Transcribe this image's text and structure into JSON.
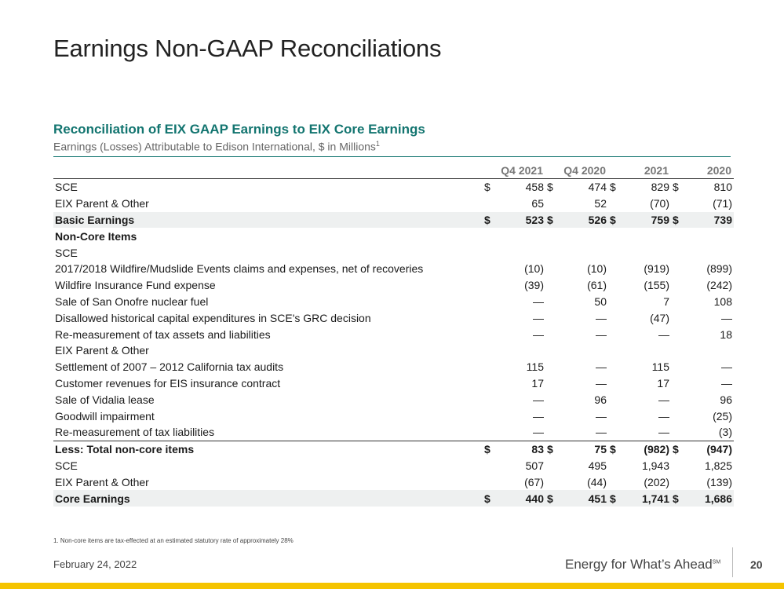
{
  "title": "Earnings Non-GAAP Reconciliations",
  "subtitle": "Reconciliation of EIX GAAP Earnings to EIX Core Earnings",
  "units_note": "Earnings (Losses) Attributable to Edison International, $ in Millions",
  "units_footnote_mark": "1",
  "columns": [
    "Q4 2021",
    "Q4 2020",
    "2021",
    "2020"
  ],
  "rows": [
    {
      "label": "SCE",
      "indent": false,
      "dollar": true,
      "values": [
        "458",
        "474",
        "829",
        "810"
      ]
    },
    {
      "label": "EIX Parent & Other",
      "indent": false,
      "dollar": false,
      "values": [
        "65",
        "52",
        "(70)",
        "(71)"
      ]
    },
    {
      "label": "Basic Earnings",
      "indent": false,
      "dollar": true,
      "bold": true,
      "shade": true,
      "values": [
        "523",
        "526",
        "759",
        "739"
      ]
    },
    {
      "label": "Non-Core Items",
      "indent": false,
      "dollar": false,
      "bold": true,
      "values": [
        "",
        "",
        "",
        ""
      ]
    },
    {
      "label": "SCE",
      "indent": false,
      "dollar": false,
      "values": [
        "",
        "",
        "",
        ""
      ]
    },
    {
      "label": "2017/2018 Wildfire/Mudslide Events claims and expenses, net of recoveries",
      "indent": true,
      "dollar": false,
      "values": [
        "(10)",
        "(10)",
        "(919)",
        "(899)"
      ]
    },
    {
      "label": "Wildfire Insurance Fund expense",
      "indent": true,
      "dollar": false,
      "values": [
        "(39)",
        "(61)",
        "(155)",
        "(242)"
      ]
    },
    {
      "label": "Sale of San Onofre nuclear fuel",
      "indent": true,
      "dollar": false,
      "values": [
        "—",
        "50",
        "7",
        "108"
      ]
    },
    {
      "label": "Disallowed historical capital expenditures in SCE's GRC decision",
      "indent": true,
      "dollar": false,
      "values": [
        "—",
        "—",
        "(47)",
        "—"
      ]
    },
    {
      "label": "Re-measurement of tax assets and liabilities",
      "indent": true,
      "dollar": false,
      "values": [
        "—",
        "—",
        "—",
        "18"
      ]
    },
    {
      "label": "EIX Parent & Other",
      "indent": false,
      "dollar": false,
      "values": [
        "",
        "",
        "",
        ""
      ]
    },
    {
      "label": "Settlement of 2007 – 2012 California tax audits",
      "indent": true,
      "dollar": false,
      "values": [
        "115",
        "—",
        "115",
        "—"
      ]
    },
    {
      "label": "Customer revenues for EIS insurance contract",
      "indent": true,
      "dollar": false,
      "values": [
        "17",
        "—",
        "17",
        "—"
      ]
    },
    {
      "label": "Sale of Vidalia lease",
      "indent": true,
      "dollar": false,
      "values": [
        "—",
        "96",
        "—",
        "96"
      ]
    },
    {
      "label": "Goodwill impairment",
      "indent": true,
      "dollar": false,
      "values": [
        "—",
        "—",
        "—",
        "(25)"
      ]
    },
    {
      "label": "Re-measurement of tax liabilities",
      "indent": true,
      "dollar": false,
      "values": [
        "—",
        "—",
        "—",
        "(3)"
      ]
    },
    {
      "label": "Less: Total non-core items",
      "indent": false,
      "dollar": true,
      "bold": true,
      "topline": true,
      "values": [
        "83",
        "75",
        "(982)",
        "(947)"
      ]
    },
    {
      "label": "SCE",
      "indent": false,
      "dollar": false,
      "values": [
        "507",
        "495",
        "1,943",
        "1,825"
      ]
    },
    {
      "label": "EIX Parent & Other",
      "indent": false,
      "dollar": false,
      "values": [
        "(67)",
        "(44)",
        "(202)",
        "(139)"
      ]
    },
    {
      "label": "Core Earnings",
      "indent": false,
      "dollar": true,
      "bold": true,
      "shade": true,
      "values": [
        "440",
        "451",
        "1,741",
        "1,686"
      ]
    }
  ],
  "dollar_sign": "$",
  "footnote": "1.  Non-core items are tax-effected at an estimated statutory rate of approximately 28%",
  "date": "February 24, 2022",
  "tagline": "Energy for What’s Ahead",
  "tagline_mark": "SM",
  "page_number": "20",
  "colors": {
    "accent": "#137570",
    "band": "#f5c400",
    "shade": "#eef0f0"
  }
}
